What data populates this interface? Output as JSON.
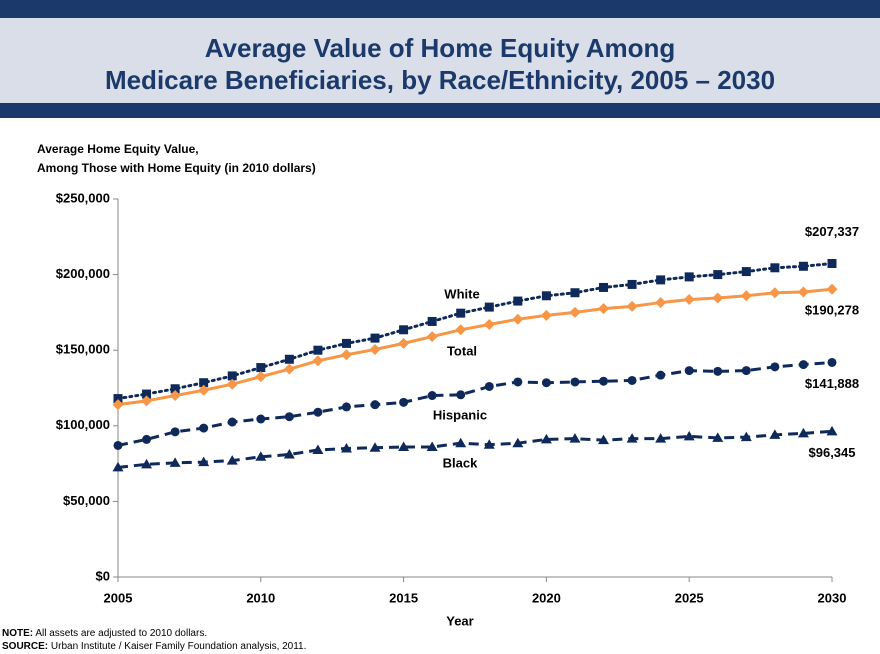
{
  "chart_data": {
    "type": "line",
    "title": [
      "Average Value of Home Equity Among",
      "Medicare Beneficiaries, by Race/Ethnicity, 2005 – 2030"
    ],
    "ylabel": [
      "Average Home Equity Value,",
      "Among Those with Home Equity (in 2010 dollars)"
    ],
    "xlabel": "Year",
    "note": {
      "label": "NOTE:",
      "text": " All  assets are adjusted to 2010 dollars."
    },
    "source": {
      "label": "SOURCE:",
      "text": " Urban Institute / Kaiser Family Foundation analysis, 2011."
    },
    "x": [
      2005,
      2006,
      2007,
      2008,
      2009,
      2010,
      2011,
      2012,
      2013,
      2014,
      2015,
      2016,
      2017,
      2018,
      2019,
      2020,
      2021,
      2022,
      2023,
      2024,
      2025,
      2026,
      2027,
      2028,
      2029,
      2030
    ],
    "xlim": [
      2005,
      2030
    ],
    "xticks": [
      2005,
      2010,
      2015,
      2020,
      2025,
      2030
    ],
    "ylim": [
      0,
      250000
    ],
    "yticks": [
      {
        "value": 0,
        "label": "$0"
      },
      {
        "value": 50000,
        "label": "$50,000"
      },
      {
        "value": 100000,
        "label": "$100,000"
      },
      {
        "value": 150000,
        "label": "$150,000"
      },
      {
        "value": 200000,
        "label": "$200,000"
      },
      {
        "value": 250000,
        "label": "$250,000"
      }
    ],
    "series": [
      {
        "name": "White",
        "color": "#0f2a5a",
        "dash": "dotted",
        "marker": "square",
        "values": [
          118000,
          121000,
          124500,
          128500,
          133000,
          138500,
          144000,
          150000,
          154500,
          158000,
          163500,
          169000,
          174500,
          178500,
          182500,
          186000,
          188000,
          191500,
          193500,
          196500,
          198500,
          200000,
          202000,
          204500,
          205500,
          207337
        ],
        "value_labels": [
          null,
          null,
          null,
          null,
          null,
          null,
          null,
          null,
          null,
          null,
          null,
          null,
          null,
          null,
          null,
          null,
          null,
          null,
          null,
          null,
          null,
          null,
          null,
          null,
          null,
          "$207,337"
        ]
      },
      {
        "name": "Total",
        "color": "#f79646",
        "dash": "solid",
        "marker": "diamond",
        "values": [
          114000,
          116500,
          120000,
          123500,
          127500,
          132500,
          137500,
          143000,
          147000,
          150500,
          154500,
          159000,
          163500,
          167000,
          170500,
          173000,
          175000,
          177500,
          179000,
          181500,
          183500,
          184500,
          186000,
          188000,
          188500,
          190278
        ],
        "value_labels": [
          null,
          null,
          null,
          null,
          null,
          null,
          null,
          null,
          null,
          null,
          null,
          null,
          null,
          null,
          null,
          null,
          null,
          null,
          null,
          null,
          null,
          null,
          null,
          null,
          null,
          "$190,278"
        ]
      },
      {
        "name": "Hispanic",
        "color": "#0f2a5a",
        "dash": "dashed",
        "marker": "circle",
        "values": [
          87000,
          91000,
          96000,
          98500,
          102500,
          104500,
          106000,
          109000,
          112500,
          114000,
          115500,
          120000,
          120500,
          126000,
          129000,
          128500,
          129000,
          129500,
          130000,
          133500,
          136500,
          136000,
          136500,
          139000,
          140500,
          141888
        ],
        "value_labels": [
          null,
          null,
          null,
          null,
          null,
          null,
          null,
          null,
          null,
          null,
          null,
          null,
          null,
          null,
          null,
          null,
          null,
          null,
          null,
          null,
          null,
          null,
          null,
          null,
          null,
          "$141,888"
        ]
      },
      {
        "name": "Black",
        "color": "#0f2a5a",
        "dash": "dashed",
        "marker": "triangle",
        "values": [
          72500,
          74500,
          75500,
          76000,
          77000,
          79500,
          81000,
          84000,
          85000,
          85500,
          86000,
          86000,
          88500,
          87500,
          88500,
          91000,
          91500,
          90500,
          91500,
          91500,
          93000,
          92000,
          92500,
          94000,
          95000,
          96345
        ],
        "value_labels": [
          null,
          null,
          null,
          null,
          null,
          null,
          null,
          null,
          null,
          null,
          null,
          null,
          null,
          null,
          null,
          null,
          null,
          null,
          null,
          null,
          null,
          null,
          null,
          null,
          null,
          "$96,345"
        ]
      }
    ]
  }
}
